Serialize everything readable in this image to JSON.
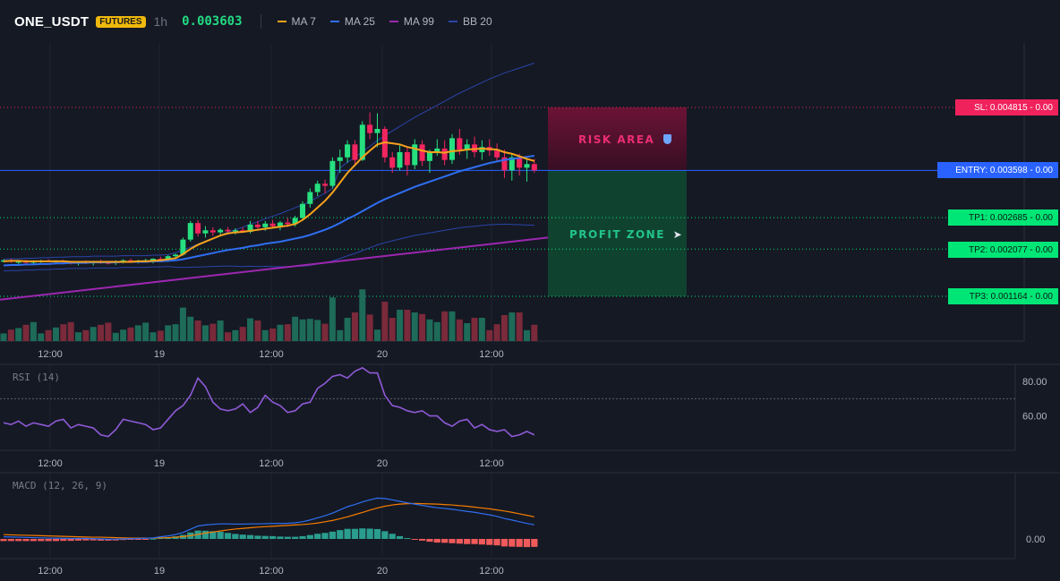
{
  "header": {
    "symbol": "ONE_USDT",
    "badge": "FUTURES",
    "timeframe": "1h",
    "price": "0.003603",
    "indicators": [
      {
        "label": "MA 7",
        "color": "#f7a21b"
      },
      {
        "label": "MA 25",
        "color": "#2f6ff2"
      },
      {
        "label": "MA 99",
        "color": "#9c27b0"
      },
      {
        "label": "BB 20",
        "color": "#2a44a8"
      }
    ]
  },
  "levels": {
    "sl": {
      "label": "SL: 0.004815",
      "value": "- 0.00",
      "color": "#f0225c"
    },
    "entry": {
      "label": "ENTRY: 0.003598",
      "value": "- 0.00",
      "color": "#2962ff"
    },
    "tp1": {
      "label": "TP1: 0.002685",
      "value": "- 0.00",
      "color": "#00e676"
    },
    "tp2": {
      "label": "TP2: 0.002077",
      "value": "- 0.00",
      "color": "#00e676"
    },
    "tp3": {
      "label": "TP3: 0.001164",
      "value": "- 0.00",
      "color": "#00e676"
    }
  },
  "zones": {
    "risk": "RISK AREA",
    "profit": "PROFIT ZONE"
  },
  "rsi": {
    "label": "RSI (14)",
    "ticks": [
      "80.00",
      "60.00"
    ]
  },
  "macd": {
    "label": "MACD (12, 26, 9)",
    "ticks": [
      "0.00"
    ]
  },
  "chart_data": [
    {
      "type": "candlestick",
      "title": "ONE_USDT 1h",
      "x_ticks": [
        "12:00",
        "19",
        "12:00",
        "20",
        "12:00"
      ],
      "sl": 0.004815,
      "entry": 0.003598,
      "tp1": 0.002685,
      "tp2": 0.002077,
      "tp3": 0.001164,
      "ohlc": [
        [
          0.00185,
          0.00188,
          0.00182,
          0.00186
        ],
        [
          0.00186,
          0.00189,
          0.00181,
          0.00183
        ],
        [
          0.00183,
          0.00186,
          0.00179,
          0.00184
        ],
        [
          0.00184,
          0.00187,
          0.0018,
          0.00182
        ],
        [
          0.00182,
          0.00185,
          0.00178,
          0.00184
        ],
        [
          0.00184,
          0.00187,
          0.00181,
          0.00185
        ],
        [
          0.00185,
          0.00188,
          0.00182,
          0.00183
        ],
        [
          0.00183,
          0.00186,
          0.00179,
          0.00185
        ],
        [
          0.00185,
          0.00187,
          0.00181,
          0.00182
        ],
        [
          0.00182,
          0.00185,
          0.00178,
          0.0018
        ],
        [
          0.0018,
          0.00184,
          0.00176,
          0.00183
        ],
        [
          0.00183,
          0.00186,
          0.00179,
          0.00181
        ],
        [
          0.00181,
          0.00185,
          0.00176,
          0.00184
        ],
        [
          0.00184,
          0.00187,
          0.00179,
          0.00182
        ],
        [
          0.00182,
          0.00185,
          0.00178,
          0.00181
        ],
        [
          0.00181,
          0.00186,
          0.00177,
          0.00183
        ],
        [
          0.00183,
          0.00188,
          0.0018,
          0.00186
        ],
        [
          0.00186,
          0.00189,
          0.00181,
          0.00184
        ],
        [
          0.00184,
          0.00187,
          0.0018,
          0.00185
        ],
        [
          0.00185,
          0.00189,
          0.00182,
          0.00186
        ],
        [
          0.00186,
          0.0019,
          0.0018,
          0.00189
        ],
        [
          0.00189,
          0.00193,
          0.00184,
          0.00188
        ],
        [
          0.00188,
          0.00196,
          0.00183,
          0.00194
        ],
        [
          0.00194,
          0.00199,
          0.00188,
          0.00197
        ],
        [
          0.00197,
          0.0023,
          0.00195,
          0.00226
        ],
        [
          0.00226,
          0.00262,
          0.00222,
          0.00258
        ],
        [
          0.00258,
          0.00264,
          0.00232,
          0.00238
        ],
        [
          0.00238,
          0.00252,
          0.0023,
          0.00244
        ],
        [
          0.00244,
          0.0025,
          0.00233,
          0.0024
        ],
        [
          0.0024,
          0.00248,
          0.00236,
          0.00245
        ],
        [
          0.00245,
          0.0025,
          0.00238,
          0.00242
        ],
        [
          0.00242,
          0.00248,
          0.00236,
          0.00244
        ],
        [
          0.00244,
          0.0025,
          0.00239,
          0.00241
        ],
        [
          0.00241,
          0.00262,
          0.00238,
          0.00255
        ],
        [
          0.00255,
          0.00262,
          0.00245,
          0.0025
        ],
        [
          0.0025,
          0.00262,
          0.00243,
          0.00257
        ],
        [
          0.00257,
          0.00264,
          0.00248,
          0.00252
        ],
        [
          0.00252,
          0.00262,
          0.00244,
          0.00259
        ],
        [
          0.00259,
          0.00268,
          0.0025,
          0.00256
        ],
        [
          0.00256,
          0.00272,
          0.00251,
          0.00268
        ],
        [
          0.00268,
          0.003,
          0.00263,
          0.00295
        ],
        [
          0.00295,
          0.00325,
          0.00288,
          0.00318
        ],
        [
          0.00318,
          0.0034,
          0.0031,
          0.00334
        ],
        [
          0.00334,
          0.00342,
          0.00315,
          0.0033
        ],
        [
          0.0033,
          0.00385,
          0.00325,
          0.00378
        ],
        [
          0.00378,
          0.004,
          0.00355,
          0.00385
        ],
        [
          0.00385,
          0.00418,
          0.00375,
          0.0041
        ],
        [
          0.0041,
          0.00418,
          0.00372,
          0.0038
        ],
        [
          0.0038,
          0.00455,
          0.00378,
          0.00448
        ],
        [
          0.00448,
          0.00472,
          0.0042,
          0.00432
        ],
        [
          0.00432,
          0.0047,
          0.00405,
          0.0044
        ],
        [
          0.0044,
          0.00445,
          0.00375,
          0.00385
        ],
        [
          0.00385,
          0.00395,
          0.00355,
          0.00365
        ],
        [
          0.00365,
          0.0041,
          0.0036,
          0.00395
        ],
        [
          0.00395,
          0.00405,
          0.0035,
          0.0037
        ],
        [
          0.0037,
          0.0042,
          0.00362,
          0.0041
        ],
        [
          0.0041,
          0.00418,
          0.00368,
          0.00378
        ],
        [
          0.00378,
          0.004,
          0.00355,
          0.00395
        ],
        [
          0.00395,
          0.0042,
          0.00388,
          0.00402
        ],
        [
          0.00402,
          0.00418,
          0.0037,
          0.0038
        ],
        [
          0.0038,
          0.0043,
          0.00372,
          0.00422
        ],
        [
          0.00422,
          0.0044,
          0.0039,
          0.004
        ],
        [
          0.004,
          0.0042,
          0.00382,
          0.0041
        ],
        [
          0.0041,
          0.00425,
          0.00385,
          0.00395
        ],
        [
          0.00395,
          0.00418,
          0.0038,
          0.00405
        ],
        [
          0.00405,
          0.0042,
          0.00388,
          0.00398
        ],
        [
          0.00398,
          0.00412,
          0.00378,
          0.00385
        ],
        [
          0.00385,
          0.004,
          0.00345,
          0.0036
        ],
        [
          0.0036,
          0.00392,
          0.0034,
          0.00385
        ],
        [
          0.00385,
          0.00392,
          0.0035,
          0.00365
        ],
        [
          0.00365,
          0.0038,
          0.00338,
          0.00372
        ],
        [
          0.00372,
          0.00382,
          0.00355,
          0.0036
        ]
      ],
      "ma7": [
        0.00184,
        0.00185,
        0.00185,
        0.00184,
        0.00184,
        0.00184,
        0.00184,
        0.00184,
        0.00184,
        0.00183,
        0.00183,
        0.00183,
        0.00183,
        0.00183,
        0.00183,
        0.00183,
        0.00183,
        0.00183,
        0.00184,
        0.00184,
        0.00185,
        0.00186,
        0.00188,
        0.0019,
        0.00198,
        0.00208,
        0.00216,
        0.00222,
        0.00228,
        0.00234,
        0.00238,
        0.0024,
        0.00241,
        0.00243,
        0.00245,
        0.00247,
        0.00249,
        0.00251,
        0.00253,
        0.00256,
        0.00264,
        0.00275,
        0.00288,
        0.00301,
        0.00317,
        0.00336,
        0.00355,
        0.0037,
        0.00385,
        0.00398,
        0.0041,
        0.00414,
        0.00412,
        0.0041,
        0.00405,
        0.00402,
        0.00398,
        0.00395,
        0.00395,
        0.00394,
        0.00397,
        0.00398,
        0.004,
        0.00401,
        0.00402,
        0.00401,
        0.004,
        0.00395,
        0.00392,
        0.00387,
        0.00382,
        0.00378
      ],
      "ma25": [
        0.00176,
        0.00177,
        0.00177,
        0.00178,
        0.00178,
        0.00179,
        0.00179,
        0.0018,
        0.0018,
        0.00181,
        0.00181,
        0.00181,
        0.00182,
        0.00182,
        0.00182,
        0.00182,
        0.00183,
        0.00183,
        0.00183,
        0.00183,
        0.00184,
        0.00184,
        0.00185,
        0.00186,
        0.00188,
        0.00191,
        0.00194,
        0.00197,
        0.002,
        0.00203,
        0.00206,
        0.00208,
        0.0021,
        0.00213,
        0.00215,
        0.00218,
        0.0022,
        0.00222,
        0.00225,
        0.00228,
        0.00231,
        0.00235,
        0.0024,
        0.00245,
        0.00251,
        0.00258,
        0.00266,
        0.00273,
        0.00281,
        0.00289,
        0.00297,
        0.00304,
        0.0031,
        0.00316,
        0.00322,
        0.00328,
        0.00333,
        0.00338,
        0.00343,
        0.00348,
        0.00353,
        0.00358,
        0.00362,
        0.00366,
        0.0037,
        0.00374,
        0.00377,
        0.0038,
        0.00382,
        0.00384,
        0.00386,
        0.00388
      ],
      "ma99_start": 0.0011,
      "ma99_end": 0.0023,
      "volume_green_ratio": "mixed"
    },
    {
      "type": "line",
      "title": "RSI (14)",
      "ylim": [
        40,
        90
      ],
      "y_ticks": [
        80,
        60
      ],
      "values": [
        56,
        55,
        57,
        54,
        56,
        55,
        54,
        57,
        58,
        53,
        55,
        54,
        53,
        49,
        48,
        52,
        58,
        57,
        56,
        55,
        52,
        53,
        58,
        63,
        66,
        72,
        82,
        77,
        68,
        64,
        63,
        64,
        67,
        62,
        65,
        72,
        68,
        66,
        62,
        63,
        67,
        68,
        76,
        79,
        83,
        84,
        82,
        86,
        88,
        85,
        85,
        72,
        66,
        65,
        63,
        62,
        63,
        60,
        60,
        56,
        54,
        57,
        58,
        53,
        55,
        52,
        51,
        52,
        48,
        49,
        51,
        49
      ],
      "reference_line": 70
    },
    {
      "type": "line",
      "title": "MACD (12, 26, 9)",
      "y_ticks": [
        "0.00"
      ],
      "macd": [
        0.1,
        0.09,
        0.08,
        0.07,
        0.06,
        0.05,
        0.04,
        0.03,
        0.03,
        0.02,
        0.02,
        0.02,
        0.01,
        0.0,
        -0.01,
        -0.01,
        0.0,
        0.01,
        0.02,
        0.03,
        0.05,
        0.1,
        0.14,
        0.2,
        0.3,
        0.45,
        0.6,
        0.65,
        0.68,
        0.7,
        0.7,
        0.69,
        0.69,
        0.7,
        0.7,
        0.71,
        0.72,
        0.72,
        0.73,
        0.75,
        0.8,
        0.88,
        0.98,
        1.08,
        1.2,
        1.35,
        1.5,
        1.6,
        1.72,
        1.82,
        1.9,
        1.88,
        1.82,
        1.75,
        1.68,
        1.62,
        1.56,
        1.5,
        1.45,
        1.42,
        1.38,
        1.33,
        1.28,
        1.24,
        1.18,
        1.12,
        1.05,
        0.95,
        0.88,
        0.8,
        0.72,
        0.66
      ],
      "signal": [
        0.2,
        0.19,
        0.18,
        0.17,
        0.16,
        0.15,
        0.14,
        0.13,
        0.12,
        0.11,
        0.1,
        0.09,
        0.08,
        0.08,
        0.07,
        0.06,
        0.05,
        0.04,
        0.04,
        0.04,
        0.04,
        0.05,
        0.06,
        0.08,
        0.11,
        0.15,
        0.21,
        0.27,
        0.32,
        0.37,
        0.42,
        0.46,
        0.49,
        0.52,
        0.55,
        0.57,
        0.59,
        0.61,
        0.63,
        0.65,
        0.67,
        0.7,
        0.74,
        0.8,
        0.86,
        0.94,
        1.03,
        1.13,
        1.23,
        1.34,
        1.44,
        1.52,
        1.58,
        1.62,
        1.64,
        1.65,
        1.64,
        1.63,
        1.62,
        1.6,
        1.58,
        1.55,
        1.52,
        1.48,
        1.44,
        1.4,
        1.35,
        1.3,
        1.24,
        1.17,
        1.1,
        1.03
      ],
      "hist": [
        -0.1,
        -0.1,
        -0.1,
        -0.1,
        -0.1,
        -0.1,
        -0.1,
        -0.1,
        -0.09,
        -0.09,
        -0.08,
        -0.07,
        -0.07,
        -0.08,
        -0.08,
        -0.07,
        -0.05,
        -0.03,
        -0.02,
        -0.01,
        0.01,
        0.05,
        0.08,
        0.12,
        0.19,
        0.3,
        0.39,
        0.38,
        0.36,
        0.33,
        0.28,
        0.23,
        0.2,
        0.18,
        0.15,
        0.14,
        0.13,
        0.11,
        0.1,
        0.1,
        0.13,
        0.18,
        0.24,
        0.28,
        0.34,
        0.41,
        0.47,
        0.47,
        0.49,
        0.48,
        0.46,
        0.36,
        0.24,
        0.13,
        0.04,
        -0.03,
        -0.08,
        -0.13,
        -0.17,
        -0.18,
        -0.2,
        -0.22,
        -0.24,
        -0.24,
        -0.26,
        -0.28,
        -0.3,
        -0.35,
        -0.36,
        -0.37,
        -0.38,
        -0.37
      ]
    }
  ]
}
